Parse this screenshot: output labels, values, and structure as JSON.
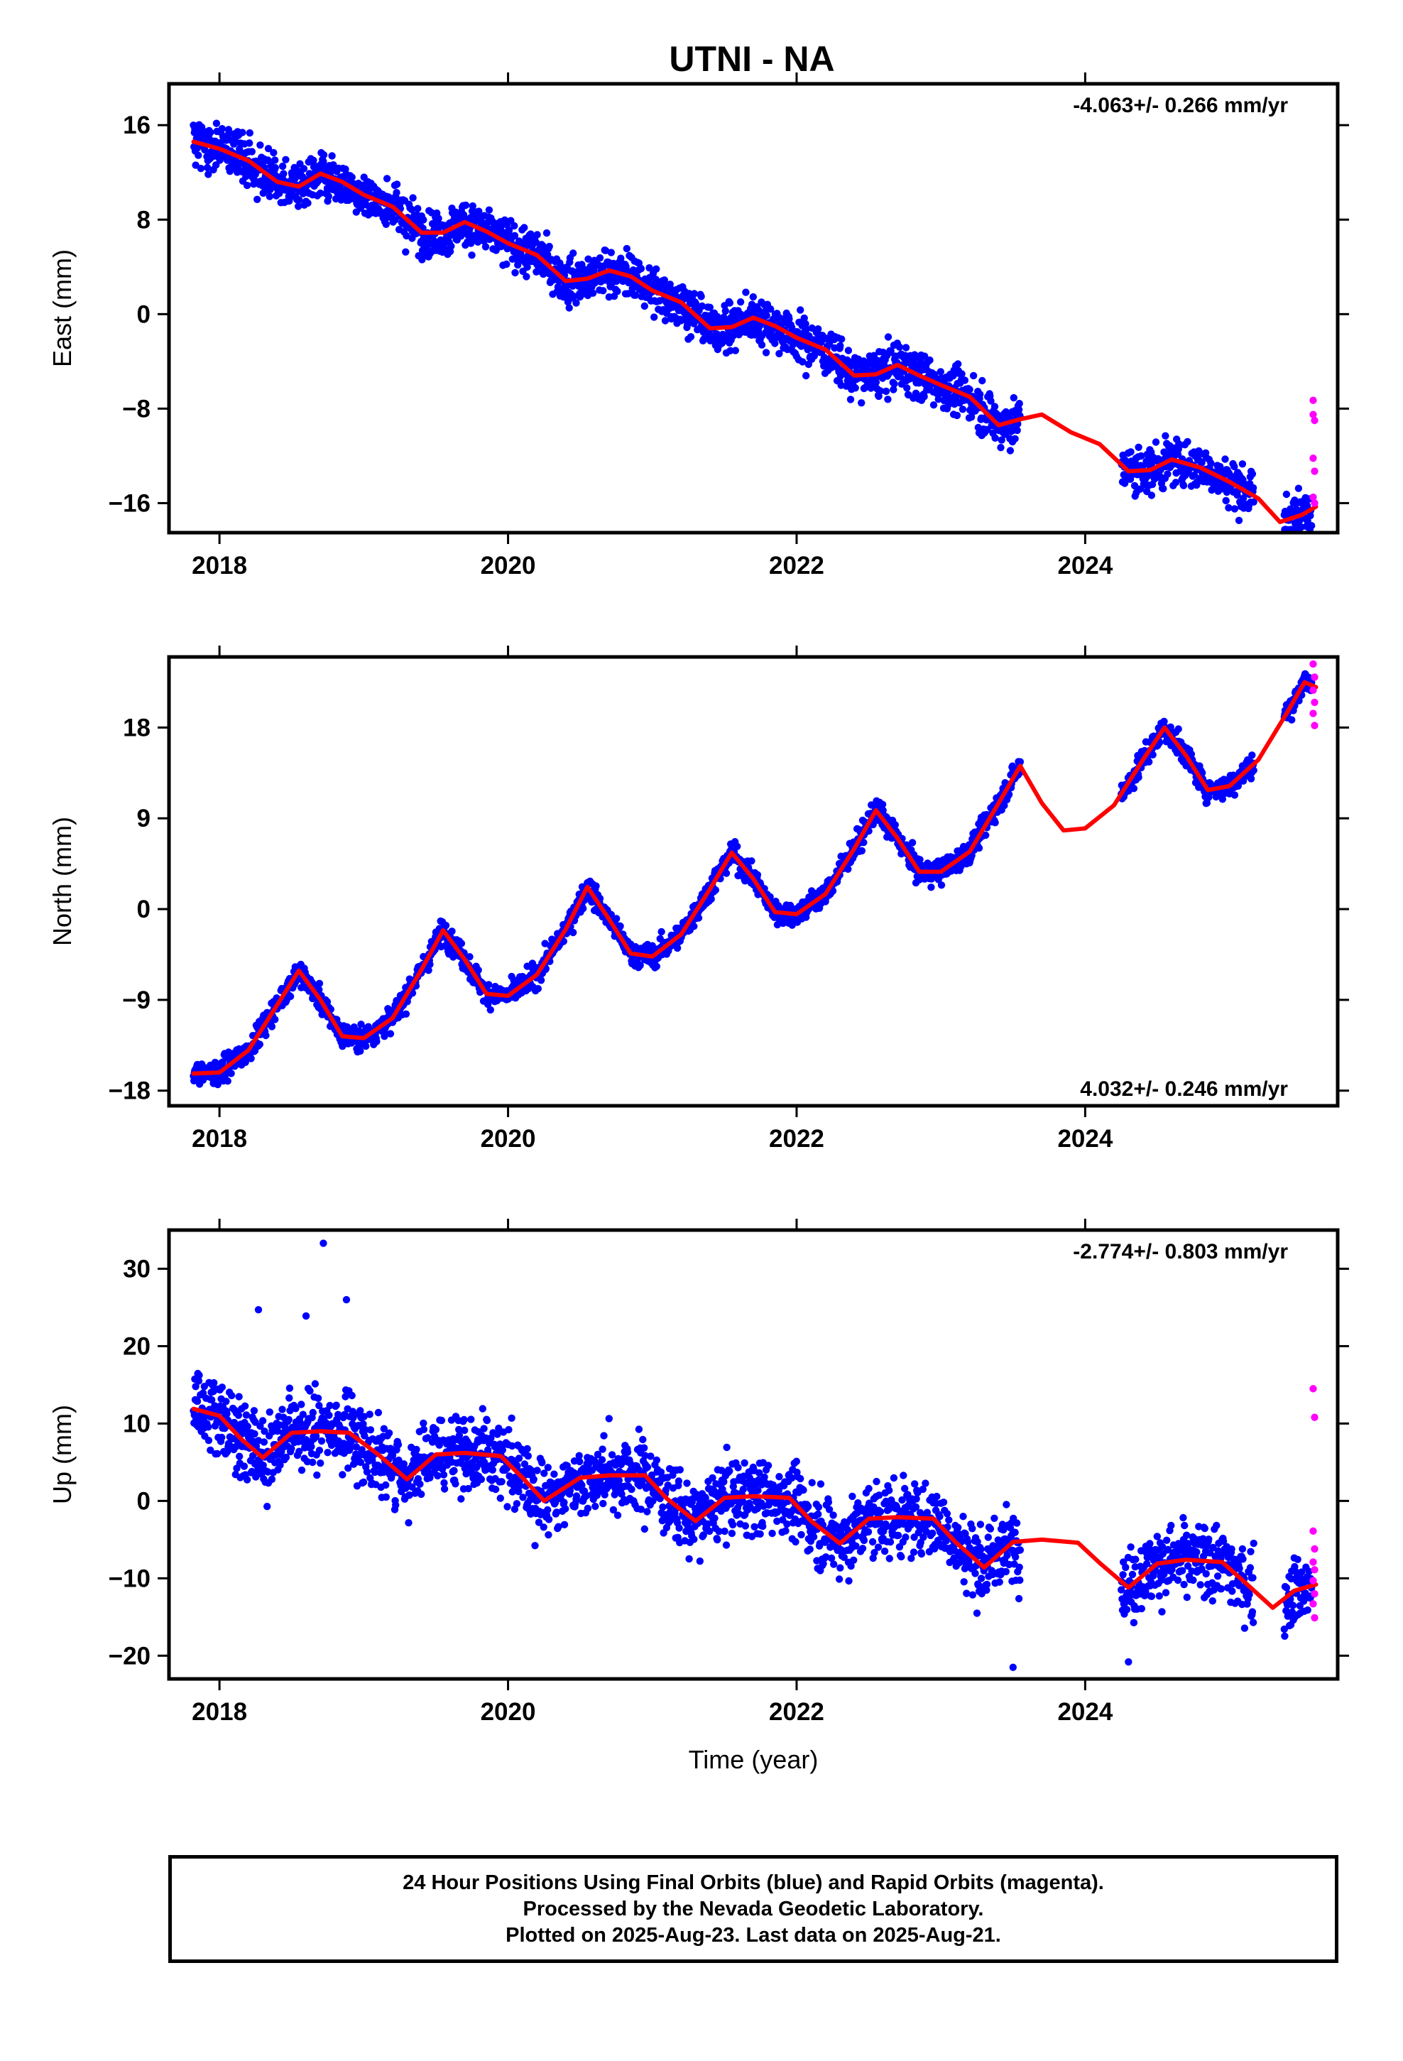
{
  "title": "UTNI - NA",
  "colors": {
    "final": "#0000ff",
    "rapid": "#ff00ff",
    "model": "#ff0000"
  },
  "chart_data": [
    {
      "type": "scatter",
      "id": "east",
      "ylabel": "East (mm)",
      "xlim": [
        2017.65,
        2025.75
      ],
      "ylim": [
        -18.5,
        19.5
      ],
      "yticks": [
        -16,
        -8,
        0,
        8,
        16
      ],
      "xticks": [
        2018,
        2020,
        2022,
        2024
      ],
      "rate_label": "-4.063+/- 0.266 mm/yr",
      "rate_position": "top-right",
      "trend": {
        "t0": 2017.82,
        "v0": 14.5,
        "slope": -4.063
      },
      "model_curve": [
        [
          2017.82,
          14.6
        ],
        [
          2018.0,
          14.0
        ],
        [
          2018.2,
          13.0
        ],
        [
          2018.4,
          11.2
        ],
        [
          2018.55,
          10.8
        ],
        [
          2018.7,
          11.9
        ],
        [
          2018.85,
          11.2
        ],
        [
          2019.0,
          10.1
        ],
        [
          2019.2,
          9.1
        ],
        [
          2019.4,
          6.9
        ],
        [
          2019.55,
          6.9
        ],
        [
          2019.7,
          7.8
        ],
        [
          2019.85,
          7.0
        ],
        [
          2020.0,
          6.0
        ],
        [
          2020.2,
          5.0
        ],
        [
          2020.4,
          2.8
        ],
        [
          2020.55,
          3.0
        ],
        [
          2020.7,
          3.7
        ],
        [
          2020.85,
          3.2
        ],
        [
          2021.0,
          2.0
        ],
        [
          2021.2,
          1.0
        ],
        [
          2021.4,
          -1.2
        ],
        [
          2021.55,
          -1.1
        ],
        [
          2021.7,
          -0.3
        ],
        [
          2021.85,
          -1.0
        ],
        [
          2022.0,
          -2.0
        ],
        [
          2022.2,
          -3.0
        ],
        [
          2022.4,
          -5.2
        ],
        [
          2022.55,
          -5.1
        ],
        [
          2022.7,
          -4.3
        ],
        [
          2022.85,
          -5.2
        ],
        [
          2023.0,
          -6.0
        ],
        [
          2023.2,
          -7.0
        ],
        [
          2023.4,
          -9.4
        ],
        [
          2023.55,
          -8.9
        ],
        [
          2023.7,
          -8.5
        ],
        [
          2023.9,
          -10.0
        ],
        [
          2024.1,
          -11.0
        ],
        [
          2024.3,
          -13.3
        ],
        [
          2024.45,
          -13.2
        ],
        [
          2024.6,
          -12.3
        ],
        [
          2024.8,
          -13.0
        ],
        [
          2025.0,
          -14.2
        ],
        [
          2025.2,
          -15.6
        ],
        [
          2025.35,
          -17.6
        ],
        [
          2025.5,
          -17.0
        ],
        [
          2025.6,
          -16.3
        ]
      ],
      "segments": [
        [
          2017.82,
          2023.55
        ],
        [
          2024.25,
          2025.17
        ],
        [
          2025.38,
          2025.57
        ]
      ],
      "noise": 1.5,
      "rapid": [
        [
          2025.58,
          -7.3
        ],
        [
          2025.58,
          -8.5
        ],
        [
          2025.59,
          -9.0
        ],
        [
          2025.58,
          -12.2
        ],
        [
          2025.59,
          -13.3
        ],
        [
          2025.58,
          -15.5
        ],
        [
          2025.59,
          -16.0
        ]
      ]
    },
    {
      "type": "scatter",
      "id": "north",
      "ylabel": "North (mm)",
      "xlim": [
        2017.65,
        2025.75
      ],
      "ylim": [
        -19.5,
        25
      ],
      "yticks": [
        -18,
        -9,
        0,
        9,
        18
      ],
      "xticks": [
        2018,
        2020,
        2022,
        2024
      ],
      "rate_label": "4.032+/- 0.246 mm/yr",
      "rate_position": "bottom-right",
      "trend": {
        "t0": 2017.82,
        "v0": -16.3,
        "slope": 4.032
      },
      "model_curve": [
        [
          2017.82,
          -16.3
        ],
        [
          2018.0,
          -16.2
        ],
        [
          2018.2,
          -14.0
        ],
        [
          2018.4,
          -9.5
        ],
        [
          2018.55,
          -6.1
        ],
        [
          2018.7,
          -9.0
        ],
        [
          2018.85,
          -12.6
        ],
        [
          2019.0,
          -12.8
        ],
        [
          2019.2,
          -10.8
        ],
        [
          2019.4,
          -6.0
        ],
        [
          2019.55,
          -2.1
        ],
        [
          2019.7,
          -5.0
        ],
        [
          2019.85,
          -8.4
        ],
        [
          2020.0,
          -8.6
        ],
        [
          2020.2,
          -6.5
        ],
        [
          2020.4,
          -2.0
        ],
        [
          2020.55,
          2.2
        ],
        [
          2020.7,
          -1.0
        ],
        [
          2020.85,
          -4.4
        ],
        [
          2021.0,
          -4.7
        ],
        [
          2021.2,
          -2.5
        ],
        [
          2021.4,
          2.0
        ],
        [
          2021.55,
          5.6
        ],
        [
          2021.7,
          3.0
        ],
        [
          2021.85,
          -0.3
        ],
        [
          2022.0,
          -0.5
        ],
        [
          2022.2,
          1.5
        ],
        [
          2022.4,
          6.0
        ],
        [
          2022.55,
          9.8
        ],
        [
          2022.7,
          7.0
        ],
        [
          2022.85,
          3.7
        ],
        [
          2023.0,
          3.7
        ],
        [
          2023.2,
          5.7
        ],
        [
          2023.4,
          10.5
        ],
        [
          2023.55,
          14.2
        ],
        [
          2023.7,
          10.5
        ],
        [
          2023.85,
          7.8
        ],
        [
          2024.0,
          8.0
        ],
        [
          2024.2,
          10.3
        ],
        [
          2024.4,
          14.8
        ],
        [
          2024.55,
          18.0
        ],
        [
          2024.7,
          15.2
        ],
        [
          2024.85,
          11.8
        ],
        [
          2025.0,
          12.2
        ],
        [
          2025.2,
          14.8
        ],
        [
          2025.4,
          19.5
        ],
        [
          2025.52,
          22.5
        ],
        [
          2025.6,
          22.0
        ]
      ],
      "segments": [
        [
          2017.82,
          2023.55
        ],
        [
          2024.25,
          2025.17
        ],
        [
          2025.38,
          2025.57
        ]
      ],
      "noise": 0.9,
      "rapid": [
        [
          2025.58,
          24.3
        ],
        [
          2025.59,
          23.0
        ],
        [
          2025.58,
          21.7
        ],
        [
          2025.59,
          20.5
        ],
        [
          2025.58,
          19.4
        ],
        [
          2025.59,
          18.2
        ]
      ]
    },
    {
      "type": "scatter",
      "id": "up",
      "ylabel": "Up (mm)",
      "xlabel": "Time (year)",
      "xlim": [
        2017.65,
        2025.75
      ],
      "ylim": [
        -23,
        35
      ],
      "yticks": [
        -20,
        -10,
        0,
        10,
        20,
        30
      ],
      "xticks": [
        2018,
        2020,
        2022,
        2024
      ],
      "rate_label": "-2.774+/- 0.803 mm/yr",
      "rate_position": "top-right",
      "trend": {
        "t0": 2017.82,
        "v0": 11.8,
        "slope": -2.774
      },
      "model_curve": [
        [
          2017.82,
          11.9
        ],
        [
          2018.0,
          11.0
        ],
        [
          2018.15,
          8.0
        ],
        [
          2018.3,
          5.6
        ],
        [
          2018.5,
          8.8
        ],
        [
          2018.7,
          9.0
        ],
        [
          2018.9,
          8.8
        ],
        [
          2019.1,
          6.0
        ],
        [
          2019.3,
          2.8
        ],
        [
          2019.5,
          6.0
        ],
        [
          2019.7,
          6.2
        ],
        [
          2019.95,
          5.8
        ],
        [
          2020.1,
          3.0
        ],
        [
          2020.25,
          0.0
        ],
        [
          2020.5,
          3.0
        ],
        [
          2020.7,
          3.3
        ],
        [
          2020.95,
          3.3
        ],
        [
          2021.1,
          0.3
        ],
        [
          2021.3,
          -2.6
        ],
        [
          2021.5,
          0.4
        ],
        [
          2021.7,
          0.6
        ],
        [
          2021.95,
          0.4
        ],
        [
          2022.1,
          -2.6
        ],
        [
          2022.3,
          -5.5
        ],
        [
          2022.5,
          -2.3
        ],
        [
          2022.7,
          -2.1
        ],
        [
          2022.95,
          -2.3
        ],
        [
          2023.1,
          -5.3
        ],
        [
          2023.3,
          -8.6
        ],
        [
          2023.5,
          -5.3
        ],
        [
          2023.7,
          -5.0
        ],
        [
          2023.95,
          -5.4
        ],
        [
          2024.1,
          -8.0
        ],
        [
          2024.3,
          -11.2
        ],
        [
          2024.5,
          -8.1
        ],
        [
          2024.7,
          -7.6
        ],
        [
          2024.95,
          -7.9
        ],
        [
          2025.1,
          -10.4
        ],
        [
          2025.3,
          -13.8
        ],
        [
          2025.45,
          -11.6
        ],
        [
          2025.6,
          -10.8
        ]
      ],
      "segments": [
        [
          2017.82,
          2023.55
        ],
        [
          2024.25,
          2025.17
        ],
        [
          2025.38,
          2025.57
        ]
      ],
      "noise": 3.6,
      "outliers": [
        [
          2018.72,
          33.3
        ],
        [
          2018.88,
          26.0
        ],
        [
          2018.27,
          24.7
        ],
        [
          2018.6,
          23.9
        ],
        [
          2023.5,
          -21.5
        ],
        [
          2024.3,
          -20.8
        ]
      ],
      "rapid": [
        [
          2025.58,
          14.5
        ],
        [
          2025.59,
          10.8
        ],
        [
          2025.58,
          -3.9
        ],
        [
          2025.59,
          -6.2
        ],
        [
          2025.58,
          -7.9
        ],
        [
          2025.59,
          -8.9
        ],
        [
          2025.58,
          -10.3
        ],
        [
          2025.59,
          -12.0
        ],
        [
          2025.58,
          -13.3
        ],
        [
          2025.59,
          -15.1
        ]
      ]
    }
  ],
  "footer": {
    "line1": "24 Hour Positions Using Final Orbits (blue) and Rapid Orbits (magenta).",
    "line2": "Processed by the Nevada Geodetic Laboratory.",
    "line3": "Plotted on 2025-Aug-23. Last data on 2025-Aug-21."
  }
}
